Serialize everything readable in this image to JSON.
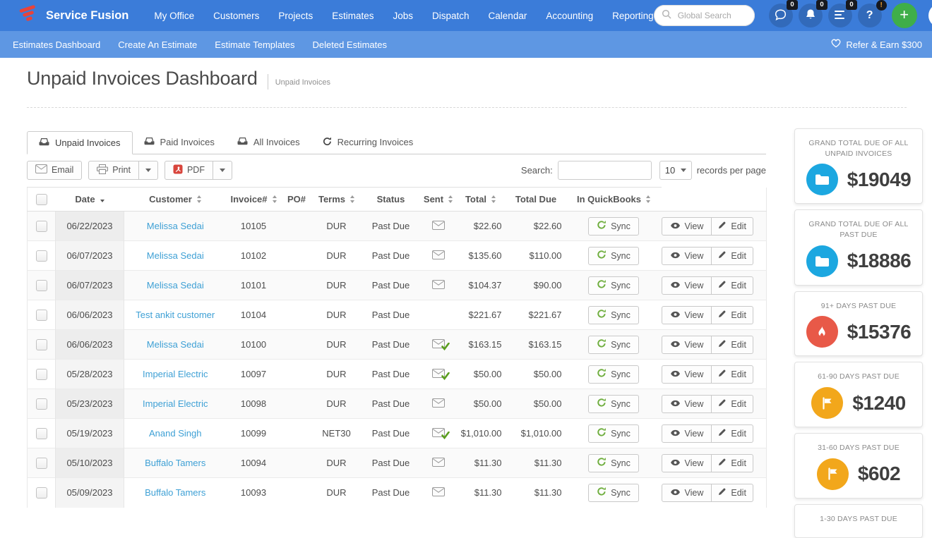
{
  "topnav": {
    "brand": "Service Fusion",
    "items": [
      "My Office",
      "Customers",
      "Projects",
      "Estimates",
      "Jobs",
      "Dispatch",
      "Calendar",
      "Accounting",
      "Reporting"
    ],
    "search_placeholder": "Global Search",
    "icons": [
      {
        "name": "chat",
        "badge": "0"
      },
      {
        "name": "notifications",
        "badge": "0"
      },
      {
        "name": "menu",
        "badge": "0"
      },
      {
        "name": "help",
        "badge": "!"
      }
    ],
    "add_label": "+"
  },
  "subnav": {
    "items": [
      "Estimates Dashboard",
      "Create An Estimate",
      "Estimate Templates",
      "Deleted Estimates"
    ],
    "refer_label": "Refer & Earn $300"
  },
  "page": {
    "title": "Unpaid Invoices Dashboard",
    "breadcrumb": "Unpaid Invoices"
  },
  "tabs": [
    {
      "label": "Unpaid Invoices",
      "icon": "inbox",
      "active": true
    },
    {
      "label": "Paid Invoices",
      "icon": "inbox",
      "active": false
    },
    {
      "label": "All Invoices",
      "icon": "inbox",
      "active": false
    },
    {
      "label": "Recurring Invoices",
      "icon": "refresh",
      "active": false
    }
  ],
  "toolbar": {
    "email_label": "Email",
    "print_label": "Print",
    "pdf_label": "PDF",
    "search_label": "Search:",
    "search_value": "",
    "page_size": "10",
    "records_label": "records per page"
  },
  "table": {
    "columns": [
      {
        "label": "Date",
        "sort": "desc"
      },
      {
        "label": "Customer",
        "sort": "both"
      },
      {
        "label": "Invoice#",
        "sort": "both"
      },
      {
        "label": "PO#",
        "sort": "none"
      },
      {
        "label": "Terms",
        "sort": "both"
      },
      {
        "label": "Status",
        "sort": "none"
      },
      {
        "label": "Sent",
        "sort": "both"
      },
      {
        "label": "Total",
        "sort": "both"
      },
      {
        "label": "Total Due",
        "sort": "none"
      },
      {
        "label": "In QuickBooks",
        "sort": "both"
      }
    ],
    "sync_label": "Sync",
    "view_label": "View",
    "edit_label": "Edit",
    "rows": [
      {
        "date": "06/22/2023",
        "customer": "Melissa Sedai",
        "invoice": "10105",
        "po": "",
        "terms": "DUR",
        "status": "Past Due",
        "sent": "sent",
        "total": "$22.60",
        "total_due": "$22.60"
      },
      {
        "date": "06/07/2023",
        "customer": "Melissa Sedai",
        "invoice": "10102",
        "po": "",
        "terms": "DUR",
        "status": "Past Due",
        "sent": "sent",
        "total": "$135.60",
        "total_due": "$110.00"
      },
      {
        "date": "06/07/2023",
        "customer": "Melissa Sedai",
        "invoice": "10101",
        "po": "",
        "terms": "DUR",
        "status": "Past Due",
        "sent": "sent",
        "total": "$104.37",
        "total_due": "$90.00"
      },
      {
        "date": "06/06/2023",
        "customer": "Test ankit customer",
        "invoice": "10104",
        "po": "",
        "terms": "DUR",
        "status": "Past Due",
        "sent": "none",
        "total": "$221.67",
        "total_due": "$221.67"
      },
      {
        "date": "06/06/2023",
        "customer": "Melissa Sedai",
        "invoice": "10100",
        "po": "",
        "terms": "DUR",
        "status": "Past Due",
        "sent": "opened",
        "total": "$163.15",
        "total_due": "$163.15"
      },
      {
        "date": "05/28/2023",
        "customer": "Imperial Electric",
        "invoice": "10097",
        "po": "",
        "terms": "DUR",
        "status": "Past Due",
        "sent": "opened",
        "total": "$50.00",
        "total_due": "$50.00"
      },
      {
        "date": "05/23/2023",
        "customer": "Imperial Electric",
        "invoice": "10098",
        "po": "",
        "terms": "DUR",
        "status": "Past Due",
        "sent": "sent",
        "total": "$50.00",
        "total_due": "$50.00"
      },
      {
        "date": "05/19/2023",
        "customer": "Anand Singh",
        "invoice": "10099",
        "po": "",
        "terms": "NET30",
        "status": "Past Due",
        "sent": "opened",
        "total": "$1,010.00",
        "total_due": "$1,010.00"
      },
      {
        "date": "05/10/2023",
        "customer": "Buffalo Tamers",
        "invoice": "10094",
        "po": "",
        "terms": "DUR",
        "status": "Past Due",
        "sent": "sent",
        "total": "$11.30",
        "total_due": "$11.30"
      },
      {
        "date": "05/09/2023",
        "customer": "Buffalo Tamers",
        "invoice": "10093",
        "po": "",
        "terms": "DUR",
        "status": "Past Due",
        "sent": "sent",
        "total": "$11.30",
        "total_due": "$11.30"
      }
    ]
  },
  "summary_cards": [
    {
      "title": "GRAND TOTAL DUE OF ALL UNPAID INVOICES",
      "value": "$19049",
      "icon": "folder",
      "color": "#1ca7e0"
    },
    {
      "title": "GRAND TOTAL DUE OF ALL PAST DUE",
      "value": "$18886",
      "icon": "folder",
      "color": "#1ca7e0"
    },
    {
      "title": "91+ DAYS PAST DUE",
      "value": "$15376",
      "icon": "fire",
      "color": "#e85948"
    },
    {
      "title": "61-90 DAYS PAST DUE",
      "value": "$1240",
      "icon": "flag",
      "color": "#f2a71b"
    },
    {
      "title": "31-60 DAYS PAST DUE",
      "value": "$602",
      "icon": "flag",
      "color": "#f2a71b"
    },
    {
      "title": "1-30 DAYS PAST DUE",
      "value": "",
      "icon": "",
      "color": ""
    }
  ],
  "colors": {
    "topnav_bg": "#3b7cd9",
    "subnav_bg": "#5e97e3",
    "link": "#3ea0d5",
    "add_button": "#3fae49",
    "sync_green": "#6fae3e",
    "card_blue": "#1ca7e0",
    "card_red": "#e85948",
    "card_amber": "#f2a71b"
  }
}
